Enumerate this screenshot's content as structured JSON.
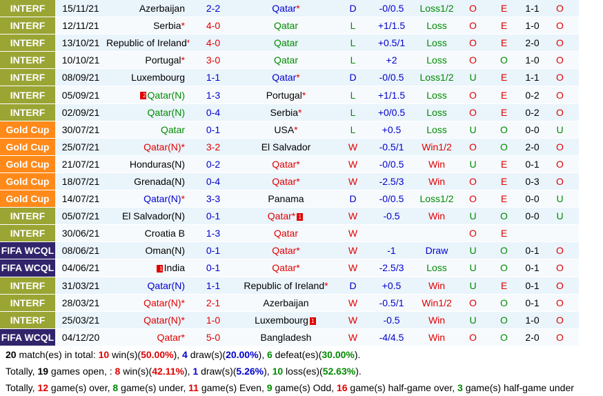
{
  "colors": {
    "interf": "#9aa534",
    "gold_cup": "#ff8a1a",
    "fifa_wcql": "#31246b",
    "red": "#e00000",
    "blue": "#0000cc",
    "green": "#008a00"
  },
  "matches": [
    {
      "comp": "INTERF",
      "type": "interf",
      "date": "15/11/21",
      "home": "Azerbaijan",
      "home_color": "",
      "home_star": false,
      "score": "2-2",
      "score_color": "blue",
      "away": "Qatar",
      "away_color": "blue",
      "away_star": true,
      "result": "D",
      "result_color": "blue",
      "handicap": "-0/0.5",
      "bet": "Loss1/2",
      "bet_color": "green",
      "hc": "O",
      "hc_color": "red",
      "ou": "E",
      "ou_color": "red",
      "ht": "1-1",
      "final": "O",
      "final_color": "red"
    },
    {
      "comp": "INTERF",
      "type": "interf",
      "date": "12/11/21",
      "home": "Serbia",
      "home_color": "",
      "home_star": true,
      "score": "4-0",
      "score_color": "red",
      "away": "Qatar",
      "away_color": "green",
      "away_star": false,
      "result": "L",
      "result_color": "green",
      "handicap": "+1/1.5",
      "bet": "Loss",
      "bet_color": "green",
      "hc": "O",
      "hc_color": "red",
      "ou": "E",
      "ou_color": "red",
      "ht": "1-0",
      "final": "O",
      "final_color": "red"
    },
    {
      "comp": "INTERF",
      "type": "interf",
      "date": "13/10/21",
      "home": "Republic of Ireland",
      "home_color": "",
      "home_star": true,
      "score": "4-0",
      "score_color": "red",
      "away": "Qatar",
      "away_color": "green",
      "away_star": false,
      "result": "L",
      "result_color": "green",
      "handicap": "+0.5/1",
      "bet": "Loss",
      "bet_color": "green",
      "hc": "O",
      "hc_color": "red",
      "ou": "E",
      "ou_color": "red",
      "ht": "2-0",
      "final": "O",
      "final_color": "red"
    },
    {
      "comp": "INTERF",
      "type": "interf",
      "date": "10/10/21",
      "home": "Portugal",
      "home_color": "",
      "home_star": true,
      "score": "3-0",
      "score_color": "red",
      "away": "Qatar",
      "away_color": "green",
      "away_star": false,
      "result": "L",
      "result_color": "green",
      "handicap": "+2",
      "bet": "Loss",
      "bet_color": "green",
      "hc": "O",
      "hc_color": "red",
      "ou": "O",
      "ou_color": "green",
      "ht": "1-0",
      "final": "O",
      "final_color": "red"
    },
    {
      "comp": "INTERF",
      "type": "interf",
      "date": "08/09/21",
      "home": "Luxembourg",
      "home_color": "",
      "home_star": false,
      "score": "1-1",
      "score_color": "blue",
      "away": "Qatar",
      "away_color": "blue",
      "away_star": true,
      "result": "D",
      "result_color": "blue",
      "handicap": "-0/0.5",
      "bet": "Loss1/2",
      "bet_color": "green",
      "hc": "U",
      "hc_color": "green",
      "ou": "E",
      "ou_color": "red",
      "ht": "1-1",
      "final": "O",
      "final_color": "red"
    },
    {
      "comp": "INTERF",
      "type": "interf",
      "date": "05/09/21",
      "home": "Qatar(N)",
      "home_color": "green",
      "home_star": false,
      "home_flag": "2",
      "score": "1-3",
      "score_color": "blue",
      "away": "Portugal",
      "away_color": "",
      "away_star": true,
      "result": "L",
      "result_color": "green",
      "handicap": "+1/1.5",
      "bet": "Loss",
      "bet_color": "green",
      "hc": "O",
      "hc_color": "red",
      "ou": "E",
      "ou_color": "red",
      "ht": "0-2",
      "final": "O",
      "final_color": "red"
    },
    {
      "comp": "INTERF",
      "type": "interf",
      "date": "02/09/21",
      "home": "Qatar(N)",
      "home_color": "green",
      "home_star": false,
      "score": "0-4",
      "score_color": "blue",
      "away": "Serbia",
      "away_color": "",
      "away_star": true,
      "result": "L",
      "result_color": "green",
      "handicap": "+0/0.5",
      "bet": "Loss",
      "bet_color": "green",
      "hc": "O",
      "hc_color": "red",
      "ou": "E",
      "ou_color": "red",
      "ht": "0-2",
      "final": "O",
      "final_color": "red"
    },
    {
      "comp": "Gold Cup",
      "type": "gold",
      "date": "30/07/21",
      "home": "Qatar",
      "home_color": "green",
      "home_star": false,
      "score": "0-1",
      "score_color": "blue",
      "away": "USA",
      "away_color": "",
      "away_star": true,
      "result": "L",
      "result_color": "green",
      "handicap": "+0.5",
      "bet": "Loss",
      "bet_color": "green",
      "hc": "U",
      "hc_color": "green",
      "ou": "O",
      "ou_color": "green",
      "ht": "0-0",
      "final": "U",
      "final_color": "green"
    },
    {
      "comp": "Gold Cup",
      "type": "gold",
      "date": "25/07/21",
      "home": "Qatar(N)",
      "home_color": "red",
      "home_star": true,
      "score": "3-2",
      "score_color": "red",
      "away": "El Salvador",
      "away_color": "",
      "away_star": false,
      "result": "W",
      "result_color": "red",
      "handicap": "-0.5/1",
      "bet": "Win1/2",
      "bet_color": "red",
      "hc": "O",
      "hc_color": "red",
      "ou": "O",
      "ou_color": "green",
      "ht": "2-0",
      "final": "O",
      "final_color": "red"
    },
    {
      "comp": "Gold Cup",
      "type": "gold",
      "date": "21/07/21",
      "home": "Honduras(N)",
      "home_color": "",
      "home_star": false,
      "score": "0-2",
      "score_color": "blue",
      "away": "Qatar",
      "away_color": "red",
      "away_star": true,
      "result": "W",
      "result_color": "red",
      "handicap": "-0/0.5",
      "bet": "Win",
      "bet_color": "red",
      "hc": "U",
      "hc_color": "green",
      "ou": "E",
      "ou_color": "red",
      "ht": "0-1",
      "final": "O",
      "final_color": "red"
    },
    {
      "comp": "Gold Cup",
      "type": "gold",
      "date": "18/07/21",
      "home": "Grenada(N)",
      "home_color": "",
      "home_star": false,
      "score": "0-4",
      "score_color": "blue",
      "away": "Qatar",
      "away_color": "red",
      "away_star": true,
      "result": "W",
      "result_color": "red",
      "handicap": "-2.5/3",
      "bet": "Win",
      "bet_color": "red",
      "hc": "O",
      "hc_color": "red",
      "ou": "E",
      "ou_color": "red",
      "ht": "0-3",
      "final": "O",
      "final_color": "red"
    },
    {
      "comp": "Gold Cup",
      "type": "gold",
      "date": "14/07/21",
      "home": "Qatar(N)",
      "home_color": "blue",
      "home_star": true,
      "score": "3-3",
      "score_color": "blue",
      "away": "Panama",
      "away_color": "",
      "away_star": false,
      "result": "D",
      "result_color": "blue",
      "handicap": "-0/0.5",
      "bet": "Loss1/2",
      "bet_color": "green",
      "hc": "O",
      "hc_color": "red",
      "ou": "E",
      "ou_color": "red",
      "ht": "0-0",
      "final": "U",
      "final_color": "green"
    },
    {
      "comp": "INTERF",
      "type": "interf",
      "date": "05/07/21",
      "home": "El Salvador(N)",
      "home_color": "",
      "home_star": false,
      "score": "0-1",
      "score_color": "blue",
      "away": "Qatar",
      "away_color": "red",
      "away_star": true,
      "away_flag": "1",
      "result": "W",
      "result_color": "red",
      "handicap": "-0.5",
      "bet": "Win",
      "bet_color": "red",
      "hc": "U",
      "hc_color": "green",
      "ou": "O",
      "ou_color": "green",
      "ht": "0-0",
      "final": "U",
      "final_color": "green"
    },
    {
      "comp": "INTERF",
      "type": "interf",
      "date": "30/06/21",
      "home": "Croatia B",
      "home_color": "",
      "home_star": false,
      "score": "1-3",
      "score_color": "blue",
      "away": "Qatar",
      "away_color": "red",
      "away_star": false,
      "result": "W",
      "result_color": "red",
      "handicap": "",
      "bet": "",
      "bet_color": "red",
      "hc": "O",
      "hc_color": "red",
      "ou": "E",
      "ou_color": "red",
      "ht": "",
      "final": "",
      "final_color": "red"
    },
    {
      "comp": "FIFA WCQL",
      "type": "wcq",
      "date": "08/06/21",
      "home": "Oman(N)",
      "home_color": "",
      "home_star": false,
      "score": "0-1",
      "score_color": "blue",
      "away": "Qatar",
      "away_color": "red",
      "away_star": true,
      "result": "W",
      "result_color": "red",
      "handicap": "-1",
      "bet": "Draw",
      "bet_color": "blue",
      "hc": "U",
      "hc_color": "green",
      "ou": "O",
      "ou_color": "green",
      "ht": "0-1",
      "final": "O",
      "final_color": "red"
    },
    {
      "comp": "FIFA WCQL",
      "type": "wcq",
      "date": "04/06/21",
      "home": "India",
      "home_color": "",
      "home_star": false,
      "home_flag_before": "1",
      "score": "0-1",
      "score_color": "blue",
      "away": "Qatar",
      "away_color": "red",
      "away_star": true,
      "result": "W",
      "result_color": "red",
      "handicap": "-2.5/3",
      "bet": "Loss",
      "bet_color": "green",
      "hc": "U",
      "hc_color": "green",
      "ou": "O",
      "ou_color": "green",
      "ht": "0-1",
      "final": "O",
      "final_color": "red"
    },
    {
      "comp": "INTERF",
      "type": "interf",
      "date": "31/03/21",
      "home": "Qatar(N)",
      "home_color": "blue",
      "home_star": false,
      "score": "1-1",
      "score_color": "blue",
      "away": "Republic of Ireland",
      "away_color": "",
      "away_star": true,
      "result": "D",
      "result_color": "blue",
      "handicap": "+0.5",
      "bet": "Win",
      "bet_color": "red",
      "hc": "U",
      "hc_color": "green",
      "ou": "E",
      "ou_color": "red",
      "ht": "0-1",
      "final": "O",
      "final_color": "red"
    },
    {
      "comp": "INTERF",
      "type": "interf",
      "date": "28/03/21",
      "home": "Qatar(N)",
      "home_color": "red",
      "home_star": true,
      "score": "2-1",
      "score_color": "red",
      "away": "Azerbaijan",
      "away_color": "",
      "away_star": false,
      "result": "W",
      "result_color": "red",
      "handicap": "-0.5/1",
      "bet": "Win1/2",
      "bet_color": "red",
      "hc": "O",
      "hc_color": "red",
      "ou": "O",
      "ou_color": "green",
      "ht": "0-1",
      "final": "O",
      "final_color": "red"
    },
    {
      "comp": "INTERF",
      "type": "interf",
      "date": "25/03/21",
      "home": "Qatar(N)",
      "home_color": "red",
      "home_star": true,
      "score": "1-0",
      "score_color": "red",
      "away": "Luxembourg",
      "away_color": "",
      "away_star": false,
      "away_flag": "1",
      "result": "W",
      "result_color": "red",
      "handicap": "-0.5",
      "bet": "Win",
      "bet_color": "red",
      "hc": "U",
      "hc_color": "green",
      "ou": "O",
      "ou_color": "green",
      "ht": "1-0",
      "final": "O",
      "final_color": "red"
    },
    {
      "comp": "FIFA WCQL",
      "type": "wcq",
      "date": "04/12/20",
      "home": "Qatar",
      "home_color": "red",
      "home_star": true,
      "score": "5-0",
      "score_color": "red",
      "away": "Bangladesh",
      "away_color": "",
      "away_star": false,
      "result": "W",
      "result_color": "red",
      "handicap": "-4/4.5",
      "bet": "Win",
      "bet_color": "red",
      "hc": "O",
      "hc_color": "red",
      "ou": "O",
      "ou_color": "green",
      "ht": "2-0",
      "final": "O",
      "final_color": "red"
    }
  ],
  "summary": {
    "line1": {
      "n": "20",
      "a": " match(es) in total: ",
      "wins": "10",
      "b": " win(s)(",
      "wins_pct": "50.00%",
      "c": "), ",
      "draws": "4",
      "d": " draw(s)(",
      "draws_pct": "20.00%",
      "e": "), ",
      "defeats": "6",
      "f": " defeat(es)(",
      "defeats_pct": "30.00%",
      "g": ")."
    },
    "line2": {
      "a": "Totally, ",
      "open": "19",
      "b": " games open, : ",
      "wins": "8",
      "c": " win(s)(",
      "wins_pct": "42.11%",
      "d": "), ",
      "draws": "1",
      "e": " draw(s)(",
      "draws_pct": "5.26%",
      "f": "), ",
      "loss": "10",
      "g": " loss(es)(",
      "loss_pct": "52.63%",
      "h": ")."
    },
    "line3": {
      "a": "Totally, ",
      "over": "12",
      "b": " game(s) over, ",
      "under": "8",
      "c": " game(s) under, ",
      "even": "11",
      "d": " game(s) Even, ",
      "odd": "9",
      "e": " game(s) Odd, ",
      "hgo": "16",
      "f": " game(s) half-game over, ",
      "hgu": "3",
      "g": " game(s) half-game under"
    }
  }
}
